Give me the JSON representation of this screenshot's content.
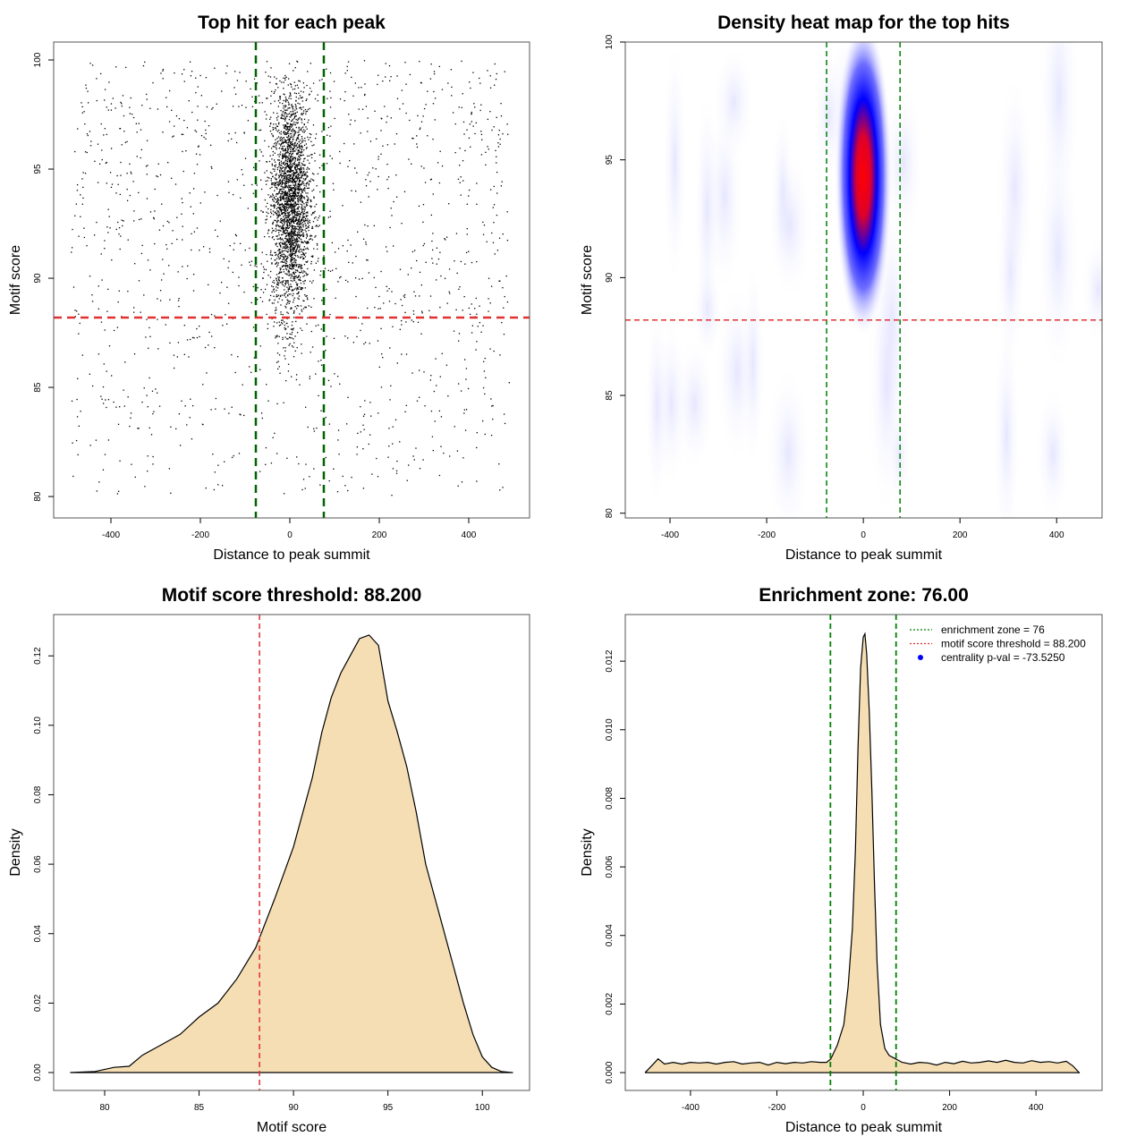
{
  "chart_data": [
    {
      "type": "scatter",
      "title": "Top hit for each peak",
      "xlabel": "Distance to peak summit",
      "ylabel": "Motif score",
      "xlim": [
        -528,
        536
      ],
      "ylim": [
        79.02,
        100.82
      ],
      "xticks": [
        -400,
        -200,
        0,
        200,
        400
      ],
      "yticks": [
        80,
        85,
        90,
        95,
        100
      ],
      "reference_lines": {
        "vertical": [
          -76,
          76
        ],
        "horizontal": 88.2
      },
      "colors": {
        "points": "#000000",
        "vline": "#006400",
        "hline": "#e03030"
      },
      "scatter_sim": {
        "n_background": 1300,
        "n_central": 2600,
        "central_sd": 22,
        "x_range": [
          -490,
          490
        ],
        "y_range": [
          80,
          100
        ],
        "central_y_mean": 93.5,
        "central_y_sd": 2.6
      }
    },
    {
      "type": "heatmap",
      "title": "Density heat map for the top hits",
      "xlabel": "Distance to peak summit",
      "ylabel": "Motif score",
      "xlim": [
        -492.6,
        494
      ],
      "ylim": [
        79.8,
        100
      ],
      "xticks": [
        -400,
        -200,
        0,
        200,
        400
      ],
      "yticks": [
        80,
        85,
        90,
        95,
        100
      ],
      "hotspot": {
        "x": 0,
        "y": 94.3
      },
      "reference_lines": {
        "vertical": [
          -76,
          76
        ],
        "horizontal": 88.2
      },
      "colors": {
        "low": "#ffffff",
        "mid": "#0000ff",
        "high": "#ff0000",
        "vline": "#008000",
        "hline": "#e03030"
      }
    },
    {
      "type": "area",
      "title": "Motif score threshold: 88.200",
      "xlabel": "Motif score",
      "ylabel": "Density",
      "xlim": [
        77.3,
        102.5
      ],
      "ylim": [
        -0.00515,
        0.1319
      ],
      "xticks": [
        80,
        85,
        90,
        95,
        100
      ],
      "yticks": [
        0.0,
        0.02,
        0.04,
        0.06,
        0.08,
        0.1,
        0.12
      ],
      "ytick_labels": [
        "0.00",
        "0.02",
        "0.04",
        "0.06",
        "0.08",
        "0.10",
        "0.12"
      ],
      "x": [
        78.2,
        79.5,
        80.5,
        81.3,
        82,
        83,
        84,
        85,
        86,
        87,
        88,
        89,
        90,
        91,
        91.5,
        92,
        92.5,
        93,
        93.5,
        94,
        94.5,
        95,
        95.5,
        96,
        96.5,
        97,
        98,
        99,
        99.5,
        100,
        100.5,
        101,
        101.6
      ],
      "y": [
        0,
        0.0003,
        0.0015,
        0.0018,
        0.005,
        0.008,
        0.011,
        0.016,
        0.02,
        0.027,
        0.036,
        0.05,
        0.065,
        0.085,
        0.098,
        0.108,
        0.115,
        0.12,
        0.125,
        0.126,
        0.123,
        0.107,
        0.098,
        0.088,
        0.075,
        0.06,
        0.04,
        0.02,
        0.011,
        0.0045,
        0.0015,
        0.0003,
        0
      ],
      "threshold": 88.2,
      "colors": {
        "fill": "#f5deb3",
        "line": "#000000",
        "threshold": "#e03030"
      }
    },
    {
      "type": "area",
      "title": "Enrichment zone: 76.00",
      "xlabel": "Distance to peak summit",
      "ylabel": "Density",
      "xlim": [
        -551,
        553
      ],
      "ylim": [
        -0.00052,
        0.01336
      ],
      "xticks": [
        -400,
        -200,
        0,
        200,
        400
      ],
      "yticks": [
        0,
        0.002,
        0.004,
        0.006,
        0.008,
        0.01,
        0.012
      ],
      "ytick_labels": [
        "0.000",
        "0.002",
        "0.004",
        "0.006",
        "0.008",
        "0.010",
        "0.012"
      ],
      "x": [
        -505,
        -490,
        -475,
        -460,
        -440,
        -420,
        -400,
        -380,
        -360,
        -340,
        -320,
        -300,
        -280,
        -260,
        -240,
        -220,
        -200,
        -180,
        -160,
        -140,
        -120,
        -100,
        -85,
        -75,
        -60,
        -45,
        -35,
        -25,
        -18,
        -12,
        -6,
        0,
        4,
        8,
        14,
        20,
        26,
        32,
        40,
        50,
        60,
        75,
        90,
        110,
        130,
        150,
        170,
        190,
        210,
        230,
        250,
        270,
        290,
        310,
        330,
        350,
        370,
        390,
        410,
        430,
        450,
        470,
        485,
        500
      ],
      "y": [
        0,
        0.0002,
        0.0004,
        0.00025,
        0.0003,
        0.00025,
        0.0003,
        0.00028,
        0.0003,
        0.00025,
        0.0003,
        0.00032,
        0.00025,
        0.00028,
        0.0003,
        0.00022,
        0.0003,
        0.00026,
        0.0003,
        0.00028,
        0.00032,
        0.0003,
        0.0003,
        0.0004,
        0.0008,
        0.0014,
        0.0025,
        0.0042,
        0.0065,
        0.0095,
        0.0118,
        0.0127,
        0.0128,
        0.0122,
        0.0105,
        0.0082,
        0.0055,
        0.0032,
        0.0014,
        0.0007,
        0.0005,
        0.0004,
        0.0003,
        0.00025,
        0.0003,
        0.00028,
        0.00022,
        0.0003,
        0.00026,
        0.00033,
        0.00028,
        0.0003,
        0.00034,
        0.0003,
        0.00036,
        0.0003,
        0.00028,
        0.00035,
        0.0003,
        0.00032,
        0.00028,
        0.00033,
        0.0002,
        0
      ],
      "vertical_lines": [
        -76,
        76
      ],
      "colors": {
        "fill": "#f5deb3",
        "line": "#000000",
        "vline": "#008000"
      },
      "legend": {
        "placement": "top-right",
        "entries": [
          {
            "label": "enrichment zone = 76",
            "color": "#008000",
            "style": "dotted-line"
          },
          {
            "label": "motif score threshold = 88.200",
            "color": "#e03030",
            "style": "dotted-line"
          },
          {
            "label": "centrality p-val = -73.5250",
            "color": "#0000ff",
            "style": "dot"
          }
        ]
      }
    }
  ]
}
